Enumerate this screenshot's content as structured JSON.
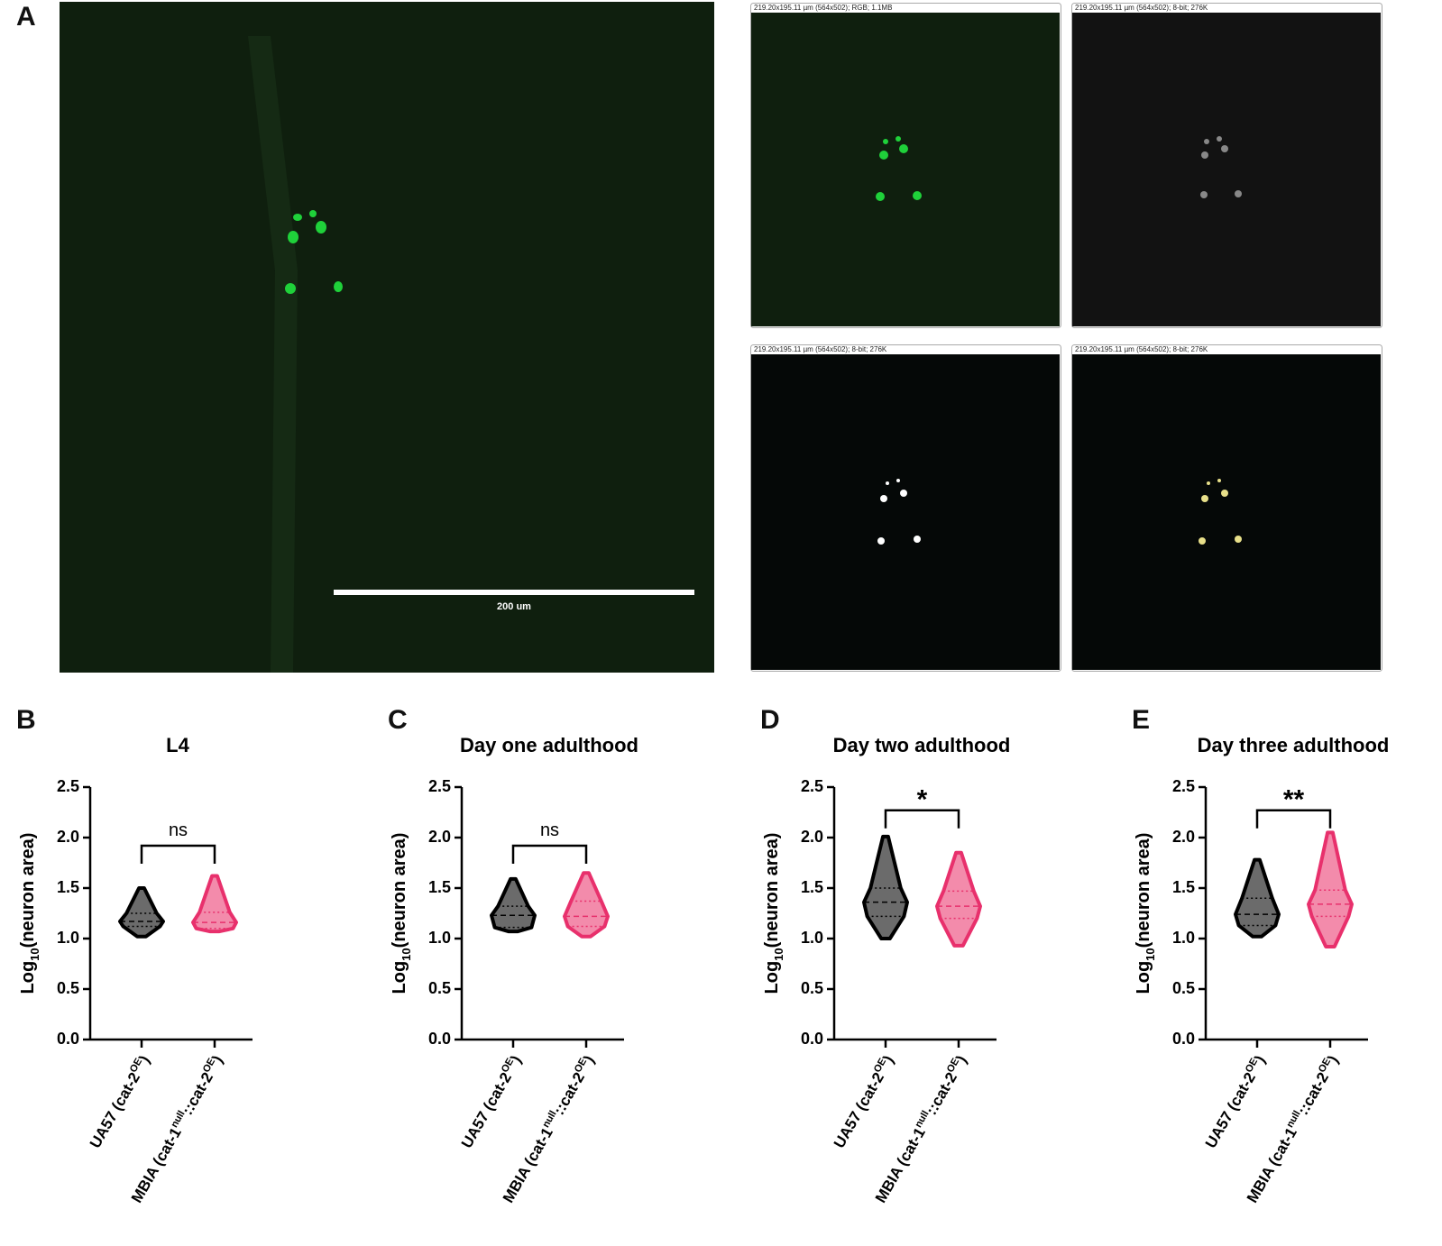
{
  "panel_a": {
    "label": "A",
    "scale_bar": "200 um",
    "image_headers": [
      "219.20x195.11 µm (564x502); RGB; 1.1MB",
      "219.20x195.11 µm (564x502); 8-bit; 276K",
      "219.20x195.11 µm (564x502); 8-bit; 276K",
      "219.20x195.11 µm (564x502); 8-bit; 276K"
    ]
  },
  "chart_data": [
    {
      "type": "violin",
      "panel": "B",
      "title": "L4",
      "y_label": [
        {
          "t": "Log"
        },
        {
          "t": "10",
          "sub": true
        },
        {
          "t": "(neuron area)"
        }
      ],
      "categories": [
        [
          {
            "t": "UA57 (cat-2"
          },
          {
            "t": "OE",
            "sup": true
          },
          {
            "t": ")"
          }
        ],
        [
          {
            "t": "MBIA (cat-1"
          },
          {
            "t": "null",
            "sup": true
          },
          {
            "t": "::cat-2"
          },
          {
            "t": "OE",
            "sup": true
          },
          {
            "t": ")"
          }
        ]
      ],
      "ylim": [
        0,
        2.5
      ],
      "yticks": [
        {
          "value": 0,
          "label": "0.0"
        },
        0.5,
        {
          "value": 1,
          "label": "1.0"
        },
        1.5,
        {
          "value": 2,
          "label": "2.0"
        },
        2.5
      ],
      "violins": [
        {
          "color": "#6b6b6b",
          "stroke": "#000000",
          "min": 1.02,
          "q1": 1.12,
          "median": 1.17,
          "q3": 1.25,
          "max": 1.5
        },
        {
          "color": "#f38bab",
          "stroke": "#e8306c",
          "min": 1.07,
          "q1": 1.1,
          "median": 1.16,
          "q3": 1.26,
          "max": 1.62
        }
      ],
      "significance": {
        "label": "ns",
        "y": 1.92
      }
    },
    {
      "type": "violin",
      "panel": "C",
      "title": "Day one adulthood",
      "y_label": [
        {
          "t": "Log"
        },
        {
          "t": "10",
          "sub": true
        },
        {
          "t": "(neuron area)"
        }
      ],
      "categories": [
        [
          {
            "t": "UA57 (cat-2"
          },
          {
            "t": "OE",
            "sup": true
          },
          {
            "t": ")"
          }
        ],
        [
          {
            "t": "MBIA (cat-1"
          },
          {
            "t": "null",
            "sup": true
          },
          {
            "t": "::cat-2"
          },
          {
            "t": "OE",
            "sup": true
          },
          {
            "t": ")"
          }
        ]
      ],
      "ylim": [
        0,
        2.5
      ],
      "yticks": [
        {
          "value": 0,
          "label": "0.0"
        },
        0.5,
        {
          "value": 1,
          "label": "1.0"
        },
        1.5,
        {
          "value": 2,
          "label": "2.0"
        },
        2.5
      ],
      "violins": [
        {
          "color": "#6b6b6b",
          "stroke": "#000000",
          "min": 1.07,
          "q1": 1.11,
          "median": 1.23,
          "q3": 1.32,
          "max": 1.59
        },
        {
          "color": "#f38bab",
          "stroke": "#e8306c",
          "min": 1.02,
          "q1": 1.12,
          "median": 1.22,
          "q3": 1.37,
          "max": 1.65
        }
      ],
      "significance": {
        "label": "ns",
        "y": 1.92
      }
    },
    {
      "type": "violin",
      "panel": "D",
      "title": "Day two adulthood",
      "y_label": [
        {
          "t": "Log"
        },
        {
          "t": "10",
          "sub": true
        },
        {
          "t": "(neuron area)"
        }
      ],
      "categories": [
        [
          {
            "t": "UA57 (cat-2"
          },
          {
            "t": "OE",
            "sup": true
          },
          {
            "t": ")"
          }
        ],
        [
          {
            "t": "MBIA (cat-1"
          },
          {
            "t": "null",
            "sup": true
          },
          {
            "t": "::cat-2"
          },
          {
            "t": "OE",
            "sup": true
          },
          {
            "t": ")"
          }
        ]
      ],
      "ylim": [
        0,
        2.5
      ],
      "yticks": [
        {
          "value": 0,
          "label": "0.0"
        },
        0.5,
        {
          "value": 1,
          "label": "1.0"
        },
        1.5,
        {
          "value": 2,
          "label": "2.0"
        },
        2.5
      ],
      "violins": [
        {
          "color": "#6b6b6b",
          "stroke": "#000000",
          "min": 1.0,
          "q1": 1.22,
          "median": 1.36,
          "q3": 1.5,
          "max": 2.01
        },
        {
          "color": "#f38bab",
          "stroke": "#e8306c",
          "min": 0.93,
          "q1": 1.2,
          "median": 1.32,
          "q3": 1.47,
          "max": 1.85
        }
      ],
      "significance": {
        "label": "*",
        "y": 2.27
      }
    },
    {
      "type": "violin",
      "panel": "E",
      "title": "Day three adulthood",
      "y_label": [
        {
          "t": "Log"
        },
        {
          "t": "10",
          "sub": true
        },
        {
          "t": "(neuron area)"
        }
      ],
      "categories": [
        [
          {
            "t": "UA57 (cat-2"
          },
          {
            "t": "OE",
            "sup": true
          },
          {
            "t": ")"
          }
        ],
        [
          {
            "t": "MBIA (cat-1"
          },
          {
            "t": "null",
            "sup": true
          },
          {
            "t": "::cat-2"
          },
          {
            "t": "OE",
            "sup": true
          },
          {
            "t": ")"
          }
        ]
      ],
      "ylim": [
        0,
        2.5
      ],
      "yticks": [
        {
          "value": 0,
          "label": "0.0"
        },
        0.5,
        {
          "value": 1,
          "label": "1.0"
        },
        1.5,
        {
          "value": 2,
          "label": "2.0"
        },
        2.5
      ],
      "violins": [
        {
          "color": "#6b6b6b",
          "stroke": "#000000",
          "min": 1.02,
          "q1": 1.13,
          "median": 1.24,
          "q3": 1.4,
          "max": 1.78
        },
        {
          "color": "#f38bab",
          "stroke": "#e8306c",
          "min": 0.92,
          "q1": 1.22,
          "median": 1.34,
          "q3": 1.48,
          "max": 2.05
        }
      ],
      "significance": {
        "label": "**",
        "y": 2.27
      }
    }
  ]
}
